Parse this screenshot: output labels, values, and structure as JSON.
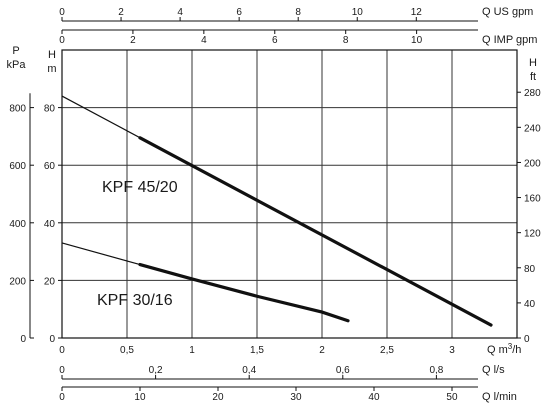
{
  "chart_data": {
    "type": "line",
    "grid": true,
    "x_main": {
      "label_prefix": "Q m",
      "label_sup": "3",
      "label_suffix": "/h",
      "range": [
        0,
        3.5
      ],
      "ticks": [
        {
          "v": 0,
          "t": "0"
        },
        {
          "v": 0.5,
          "t": "0,5"
        },
        {
          "v": 1,
          "t": "1"
        },
        {
          "v": 1.5,
          "t": "1,5"
        },
        {
          "v": 2,
          "t": "2"
        },
        {
          "v": 2.5,
          "t": "2,5"
        },
        {
          "v": 3,
          "t": "3"
        }
      ]
    },
    "x_us_gpm": {
      "label": "Q US gpm",
      "ticks": [
        {
          "v": 0,
          "t": "0"
        },
        {
          "v": 2,
          "t": "2"
        },
        {
          "v": 4,
          "t": "4"
        },
        {
          "v": 6,
          "t": "6"
        },
        {
          "v": 8,
          "t": "8"
        },
        {
          "v": 10,
          "t": "10"
        },
        {
          "v": 12,
          "t": "12"
        }
      ],
      "per_m3h": 4.403
    },
    "x_imp_gpm": {
      "label": "Q IMP gpm",
      "ticks": [
        {
          "v": 0,
          "t": "0"
        },
        {
          "v": 2,
          "t": "2"
        },
        {
          "v": 4,
          "t": "4"
        },
        {
          "v": 6,
          "t": "6"
        },
        {
          "v": 8,
          "t": "8"
        },
        {
          "v": 10,
          "t": "10"
        }
      ],
      "per_m3h": 3.666
    },
    "x_ls": {
      "label": "Q l/s",
      "ticks": [
        {
          "v": 0,
          "t": "0"
        },
        {
          "v": 0.2,
          "t": "0,2"
        },
        {
          "v": 0.4,
          "t": "0,4"
        },
        {
          "v": 0.6,
          "t": "0,6"
        },
        {
          "v": 0.8,
          "t": "0,8"
        }
      ],
      "per_m3h": 0.27778
    },
    "x_lmin": {
      "label": "Q l/min",
      "ticks": [
        {
          "v": 0,
          "t": "0"
        },
        {
          "v": 10,
          "t": "10"
        },
        {
          "v": 20,
          "t": "20"
        },
        {
          "v": 30,
          "t": "30"
        },
        {
          "v": 40,
          "t": "40"
        },
        {
          "v": 50,
          "t": "50"
        }
      ],
      "per_m3h": 16.667
    },
    "y_m": {
      "label_line1": "H",
      "label_line2": "m",
      "range": [
        0,
        100
      ],
      "ticks": [
        {
          "v": 0,
          "t": "0"
        },
        {
          "v": 20,
          "t": "20"
        },
        {
          "v": 40,
          "t": "40"
        },
        {
          "v": 60,
          "t": "60"
        },
        {
          "v": 80,
          "t": "80"
        }
      ]
    },
    "y_kpa": {
      "label_line1": "P",
      "label_line2": "kPa",
      "ticks": [
        {
          "v": 0,
          "t": "0"
        },
        {
          "v": 200,
          "t": "200"
        },
        {
          "v": 400,
          "t": "400"
        },
        {
          "v": 600,
          "t": "600"
        },
        {
          "v": 800,
          "t": "800"
        }
      ],
      "per_m": 10
    },
    "y_ft": {
      "label_line1": "H",
      "label_line2": "ft",
      "ticks": [
        {
          "v": 0,
          "t": "0"
        },
        {
          "v": 40,
          "t": "40"
        },
        {
          "v": 80,
          "t": "80"
        },
        {
          "v": 120,
          "t": "120"
        },
        {
          "v": 160,
          "t": "160"
        },
        {
          "v": 200,
          "t": "200"
        },
        {
          "v": 240,
          "t": "240"
        },
        {
          "v": 280,
          "t": "280"
        }
      ],
      "per_m": 3.281
    },
    "series": [
      {
        "name": "KPF 45/20",
        "color": "#111111",
        "curve": [
          {
            "x": 0,
            "y": 84
          },
          {
            "x": 3.3,
            "y": 4.5
          }
        ],
        "operating": [
          {
            "x": 0.6,
            "y": 69.5
          },
          {
            "x": 3.3,
            "y": 4.5
          }
        ]
      },
      {
        "name": "KPF 30/16",
        "color": "#111111",
        "curve": [
          {
            "x": 0,
            "y": 33
          },
          {
            "x": 0.6,
            "y": 25.5
          }
        ],
        "operating": [
          {
            "x": 0.6,
            "y": 25.5
          },
          {
            "x": 1.0,
            "y": 20.5
          },
          {
            "x": 1.5,
            "y": 14.5
          },
          {
            "x": 2.0,
            "y": 9
          },
          {
            "x": 2.2,
            "y": 6
          }
        ]
      }
    ]
  }
}
